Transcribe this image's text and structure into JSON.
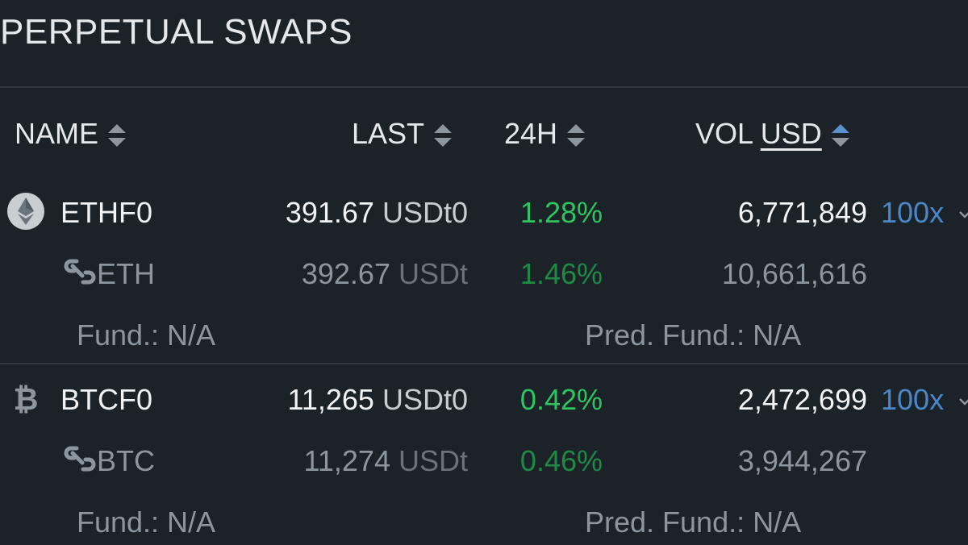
{
  "page": {
    "title": "PERPETUAL SWAPS"
  },
  "columns": {
    "name": "NAME",
    "last": "LAST",
    "change": "24H",
    "vol_prefix": "VOL",
    "vol_unit": "USD"
  },
  "rows": [
    {
      "icon": "ethereum-icon",
      "symbol": "ETHF0",
      "last_value": "391.67",
      "last_unit": "USDt0",
      "change": "1.28%",
      "volume": "6,771,849",
      "leverage": "100x",
      "linked": {
        "icon": "link-icon",
        "symbol": "ETH",
        "last_value": "392.67",
        "last_unit": "USDt",
        "change": "1.46%",
        "volume": "10,661,616"
      },
      "funding": "Fund.: N/A",
      "pred_funding": "Pred. Fund.: N/A"
    },
    {
      "icon": "bitcoin-icon",
      "symbol": "BTCF0",
      "last_value": "11,265",
      "last_unit": "USDt0",
      "change": "0.42%",
      "volume": "2,472,699",
      "leverage": "100x",
      "linked": {
        "icon": "link-icon",
        "symbol": "BTC",
        "last_value": "11,274",
        "last_unit": "USDt",
        "change": "0.46%",
        "volume": "3,944,267"
      },
      "funding": "Fund.: N/A",
      "pred_funding": "Pred. Fund.: N/A"
    }
  ],
  "colors": {
    "background": "#1b2228",
    "positive": "#2ec45f",
    "leverage": "#4a86c8",
    "active_sort": "#5a8fd0"
  }
}
